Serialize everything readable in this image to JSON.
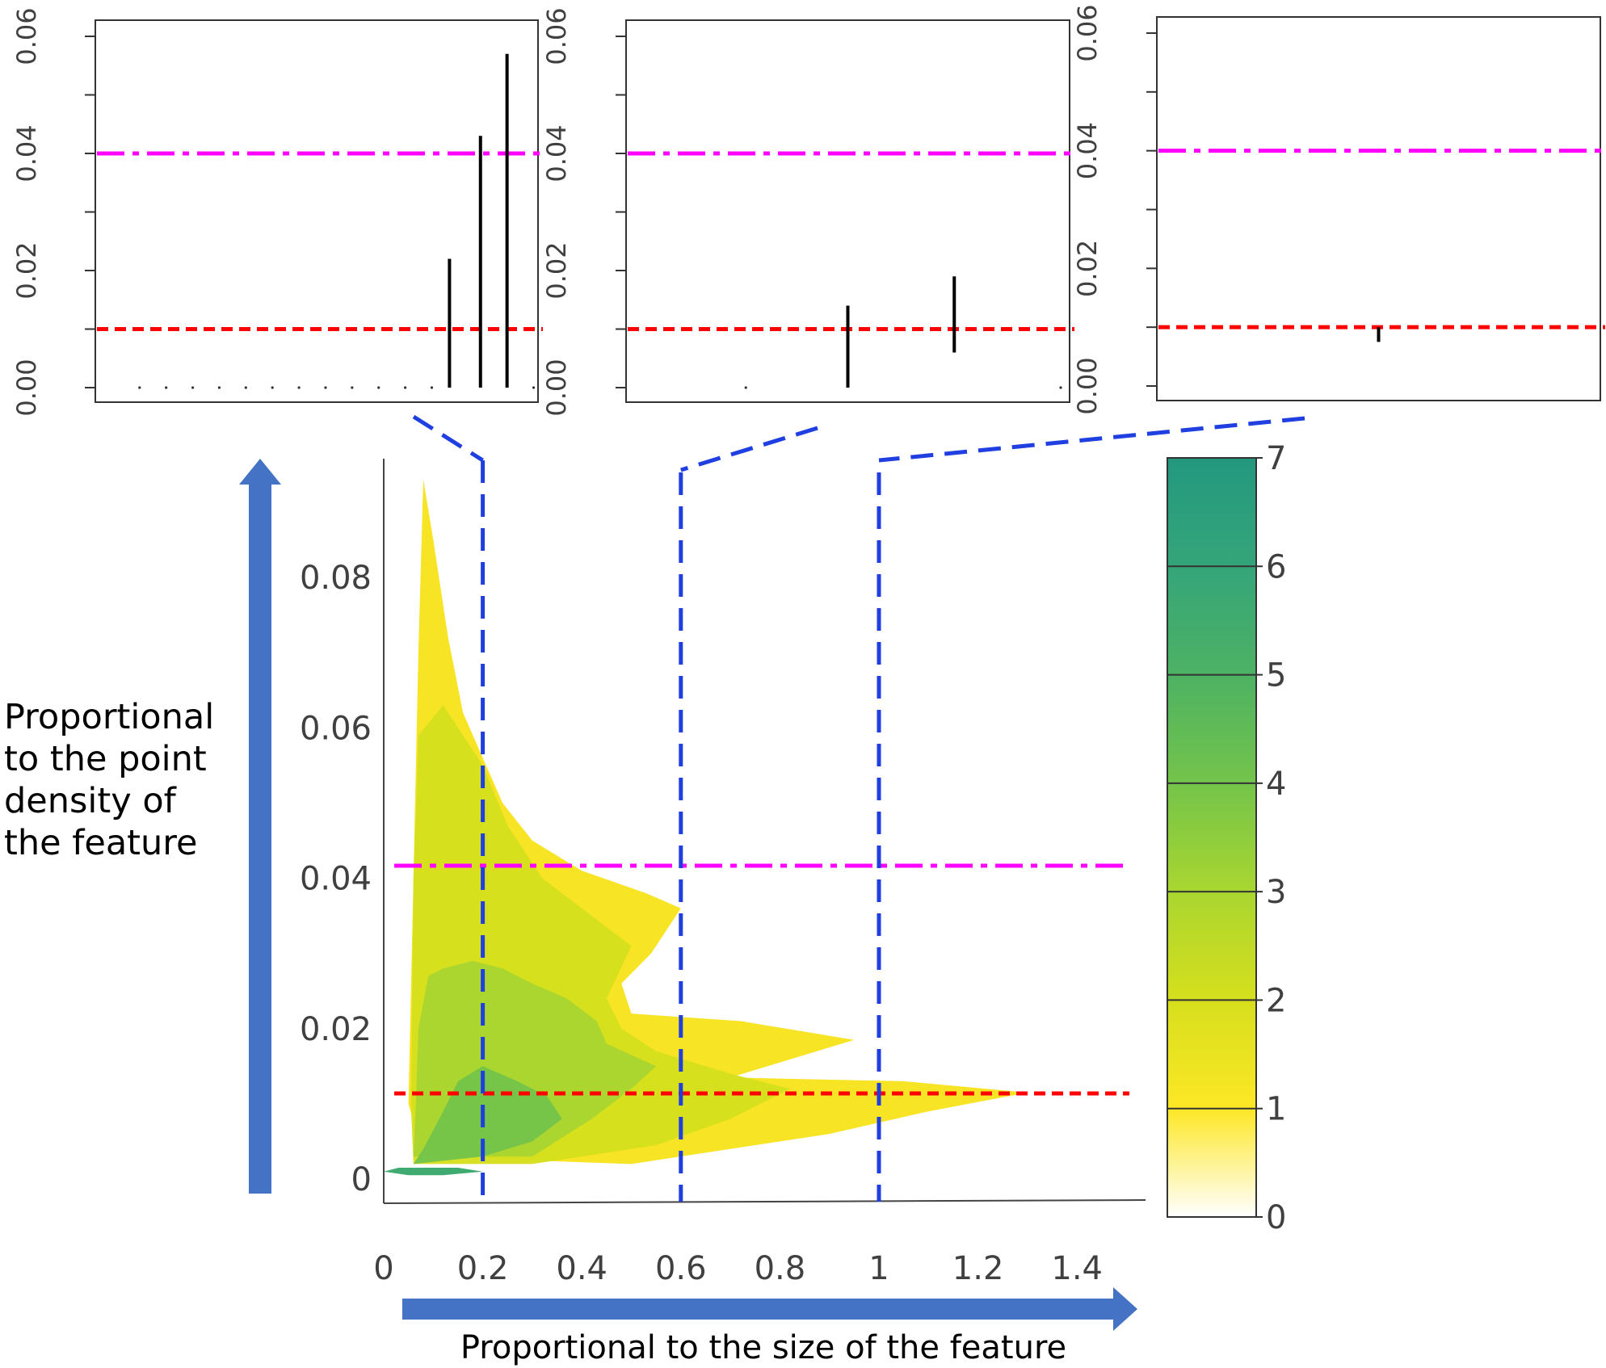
{
  "chart_data": [
    {
      "type": "bar",
      "panel": "top-left",
      "yticks": [
        "0.00",
        "0.02",
        "0.04",
        "0.06"
      ],
      "ylim": [
        0,
        0.06
      ],
      "reference_lines": [
        {
          "y": 0.04,
          "color": "#ff00ff",
          "style": "dash-dot"
        },
        {
          "y": 0.01,
          "color": "#ff0000",
          "style": "dashed"
        }
      ],
      "bars": [
        {
          "x": 0.8,
          "y": 0.022
        },
        {
          "x": 0.87,
          "y": 0.043
        },
        {
          "x": 0.93,
          "y": 0.057
        }
      ],
      "dots": [
        0.1,
        0.16,
        0.22,
        0.28,
        0.34,
        0.4,
        0.46,
        0.52,
        0.58,
        0.64,
        0.7,
        0.76,
        0.99
      ]
    },
    {
      "type": "bar",
      "panel": "top-middle",
      "yticks": [
        "0.00",
        "0.02",
        "0.04",
        "0.06"
      ],
      "ylim": [
        0,
        0.06
      ],
      "reference_lines": [
        {
          "y": 0.04,
          "color": "#ff00ff",
          "style": "dash-dot"
        },
        {
          "y": 0.01,
          "color": "#ff0000",
          "style": "dashed"
        }
      ],
      "segments": [
        {
          "x": 0.5,
          "y0": 0.0,
          "y1": 0.014
        },
        {
          "x": 0.74,
          "y0": 0.006,
          "y1": 0.019
        }
      ],
      "dots": [
        0.27,
        0.98
      ]
    },
    {
      "type": "bar",
      "panel": "top-right",
      "yticks": [
        "0.00",
        "0.02",
        "0.04",
        "0.06"
      ],
      "ylim": [
        0,
        0.06
      ],
      "reference_lines": [
        {
          "y": 0.04,
          "color": "#ff00ff",
          "style": "dash-dot"
        },
        {
          "y": 0.01,
          "color": "#ff0000",
          "style": "dashed"
        }
      ],
      "segments": [
        {
          "x": 0.5,
          "y0": 0.0075,
          "y1": 0.01
        }
      ]
    },
    {
      "type": "area",
      "panel": "main",
      "xlabel": "Proportional to the size of the feature",
      "ylabel": "Proportional to the point density of the feature",
      "ylabel_lines": [
        "Proportional",
        "to the point",
        "density of",
        "the feature"
      ],
      "xticks": [
        "0",
        "0.2",
        "0.4",
        "0.6",
        "0.8",
        "1",
        "1.2",
        "1.4"
      ],
      "xtick_values": [
        0,
        0.2,
        0.4,
        0.6,
        0.8,
        1,
        1.2,
        1.4
      ],
      "yticks": [
        "0",
        "0.02",
        "0.04",
        "0.06",
        "0.08"
      ],
      "ytick_values": [
        0,
        0.02,
        0.04,
        0.06,
        0.08
      ],
      "xlim": [
        0,
        1.55
      ],
      "ylim": [
        0,
        0.095
      ],
      "vertical_lines": [
        0.2,
        0.6,
        1
      ],
      "horizontal_lines": [
        {
          "y": 0.04,
          "color": "#ff00ff",
          "style": "dash-dot"
        },
        {
          "y": 0.011,
          "color": "#ff0000",
          "style": "dashed"
        }
      ],
      "layers": [
        {
          "level": 1,
          "color": "#f7e31e",
          "points": [
            [
              0.08,
              0.003
            ],
            [
              0.5,
              0.002
            ],
            [
              0.9,
              0.006
            ],
            [
              1.1,
              0.009
            ],
            [
              1.3,
              0.0115
            ],
            [
              1.05,
              0.013
            ],
            [
              0.7,
              0.0135
            ],
            [
              0.95,
              0.0185
            ],
            [
              0.72,
              0.021
            ],
            [
              0.5,
              0.022
            ],
            [
              0.48,
              0.026
            ],
            [
              0.54,
              0.03
            ],
            [
              0.6,
              0.036
            ],
            [
              0.53,
              0.038
            ],
            [
              0.4,
              0.041
            ],
            [
              0.3,
              0.045
            ],
            [
              0.24,
              0.05
            ],
            [
              0.2,
              0.056
            ],
            [
              0.16,
              0.062
            ],
            [
              0.13,
              0.072
            ],
            [
              0.1,
              0.085
            ],
            [
              0.08,
              0.093
            ],
            [
              0.07,
              0.07
            ],
            [
              0.06,
              0.04
            ],
            [
              0.05,
              0.01
            ]
          ]
        },
        {
          "level": 2,
          "color": "#d6df1d",
          "points": [
            [
              0.06,
              0.002
            ],
            [
              0.3,
              0.002
            ],
            [
              0.55,
              0.0045
            ],
            [
              0.7,
              0.008
            ],
            [
              0.82,
              0.012
            ],
            [
              0.7,
              0.014
            ],
            [
              0.55,
              0.017
            ],
            [
              0.48,
              0.02
            ],
            [
              0.45,
              0.024
            ],
            [
              0.5,
              0.031
            ],
            [
              0.4,
              0.036
            ],
            [
              0.32,
              0.04
            ],
            [
              0.25,
              0.047
            ],
            [
              0.2,
              0.055
            ],
            [
              0.15,
              0.06
            ],
            [
              0.12,
              0.063
            ],
            [
              0.07,
              0.059
            ],
            [
              0.06,
              0.04
            ],
            [
              0.055,
              0.01
            ]
          ]
        },
        {
          "level": 3,
          "color": "#a9d630",
          "points": [
            [
              0.06,
              0.003
            ],
            [
              0.3,
              0.003
            ],
            [
              0.42,
              0.008
            ],
            [
              0.5,
              0.012
            ],
            [
              0.55,
              0.015
            ],
            [
              0.45,
              0.018
            ],
            [
              0.43,
              0.021
            ],
            [
              0.37,
              0.024
            ],
            [
              0.3,
              0.026
            ],
            [
              0.24,
              0.028
            ],
            [
              0.18,
              0.029
            ],
            [
              0.12,
              0.028
            ],
            [
              0.09,
              0.027
            ],
            [
              0.07,
              0.02
            ],
            [
              0.065,
              0.01
            ]
          ]
        },
        {
          "level": 4,
          "color": "#74c44a",
          "points": [
            [
              0.06,
              0.002
            ],
            [
              0.2,
              0.003
            ],
            [
              0.3,
              0.005
            ],
            [
              0.36,
              0.008
            ],
            [
              0.33,
              0.011
            ],
            [
              0.27,
              0.013
            ],
            [
              0.2,
              0.015
            ],
            [
              0.15,
              0.013
            ],
            [
              0.12,
              0.009
            ],
            [
              0.08,
              0.004
            ]
          ]
        },
        {
          "level": 6,
          "color": "#3aa86b",
          "points": [
            [
              0.0,
              0.001
            ],
            [
              0.05,
              0.0005
            ],
            [
              0.12,
              0.0005
            ],
            [
              0.2,
              0.001
            ],
            [
              0.15,
              0.0015
            ],
            [
              0.08,
              0.0015
            ],
            [
              0.03,
              0.0015
            ]
          ]
        }
      ]
    },
    {
      "type": "heatmap",
      "panel": "colorbar",
      "ticks": [
        "0",
        "1",
        "2",
        "3",
        "4",
        "5",
        "6",
        "7"
      ],
      "tick_values": [
        0,
        1,
        2,
        3,
        4,
        5,
        6,
        7
      ],
      "colors": [
        "#ffffff",
        "#fde725",
        "#d6df1d",
        "#a9d630",
        "#74c44a",
        "#4db263",
        "#35a57a",
        "#23987e"
      ]
    }
  ]
}
